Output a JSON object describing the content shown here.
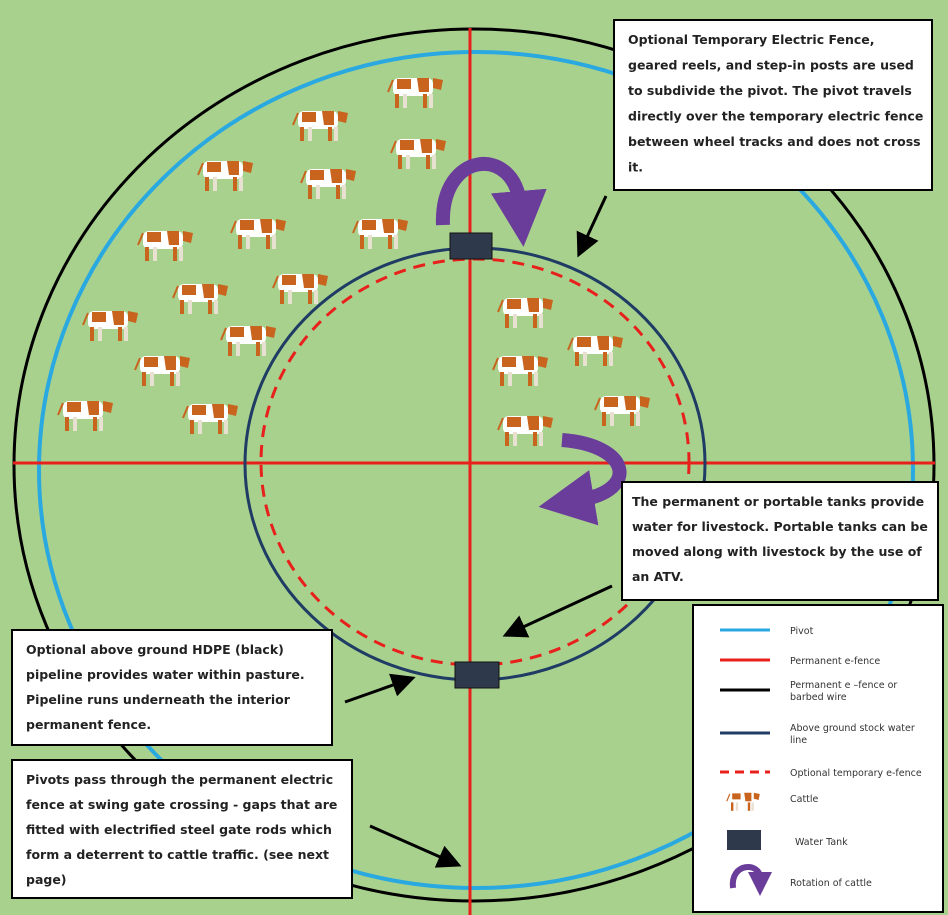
{
  "callouts": [
    {
      "lines": [
        "Optional Temporary Electric Fence,",
        "geared reels, and step-in posts are used",
        "to subdivide the pivot. The pivot travels",
        "directly over the temporary electric fence",
        "between wheel tracks and does not cross",
        "it."
      ]
    },
    {
      "lines": [
        "The permanent or portable tanks provide",
        "water for livestock. Portable tanks can be",
        "moved along with livestock by the use of",
        "an ATV."
      ]
    },
    {
      "lines": [
        "Optional above ground HDPE (black)",
        "pipeline provides water within pasture.",
        "Pipeline runs underneath the interior",
        "permanent fence."
      ]
    },
    {
      "lines": [
        "Pivots pass through the permanent electric",
        "fence at swing gate crossing - gaps that are",
        "fitted with electrified steel gate rods which",
        "form a deterrent to cattle traffic. (see next",
        "page)"
      ]
    }
  ],
  "legend": [
    {
      "lines": [
        "Pivot"
      ]
    },
    {
      "lines": [
        "Permanent e-fence"
      ]
    },
    {
      "lines": [
        "Permanent e –fence or",
        "barbed wire"
      ]
    },
    {
      "lines": [
        "Above ground stock water",
        "line"
      ]
    },
    {
      "lines": [
        "Optional temporary e-fence"
      ]
    },
    {
      "lines": [
        "Cattle"
      ]
    },
    {
      "lines": [
        "Water Tank"
      ]
    },
    {
      "lines": [
        "Rotation of cattle"
      ]
    }
  ]
}
